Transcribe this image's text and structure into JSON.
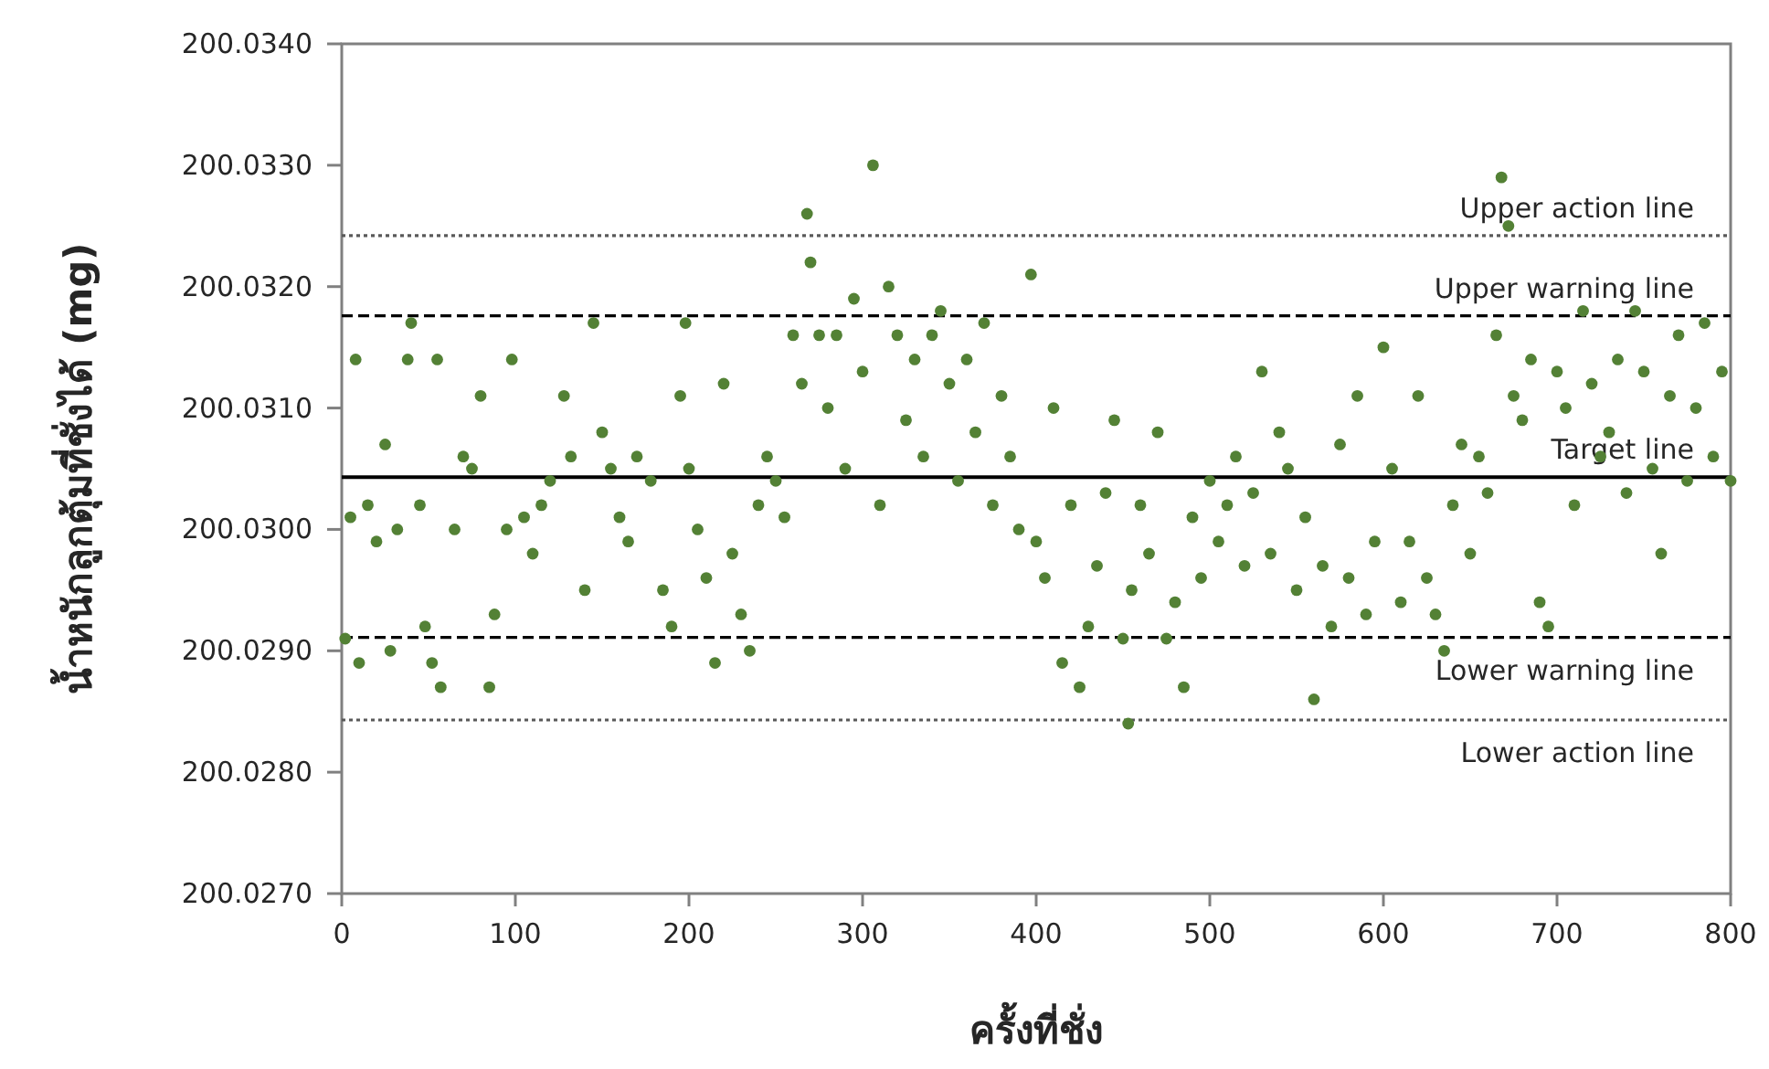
{
  "chart_data": {
    "type": "scatter",
    "xlabel": "ครั้งที่ชั่ง",
    "ylabel": "น้ำหนักลูกตุ้มที่ชั่งได้ (mg)",
    "xlim": [
      0,
      800
    ],
    "xticks": [
      0,
      100,
      200,
      300,
      400,
      500,
      600,
      700,
      800
    ],
    "ylim": [
      200.027,
      200.034
    ],
    "yticks": [
      {
        "value": 200.027,
        "label": "200.0270"
      },
      {
        "value": 200.028,
        "label": "200.0280"
      },
      {
        "value": 200.029,
        "label": "200.0290"
      },
      {
        "value": 200.03,
        "label": "200.0300"
      },
      {
        "value": 200.031,
        "label": "200.0310"
      },
      {
        "value": 200.032,
        "label": "200.0320"
      },
      {
        "value": 200.033,
        "label": "200.0330"
      },
      {
        "value": 200.034,
        "label": "200.0340"
      }
    ],
    "grid": false,
    "marker": "circle",
    "ref_lines": [
      {
        "axis": "y",
        "value": 200.03242,
        "label": "Upper action line",
        "line_style": "dotted",
        "color": "#595959"
      },
      {
        "axis": "y",
        "value": 200.03176,
        "label": "Upper warning line",
        "line_style": "dashed",
        "color": "#000000"
      },
      {
        "axis": "y",
        "value": 200.03043,
        "label": "Target line",
        "line_style": "solid",
        "color": "#000000"
      },
      {
        "axis": "y",
        "value": 200.02911,
        "label": "Lower warning line",
        "line_style": "dashed",
        "color": "#000000"
      },
      {
        "axis": "y",
        "value": 200.02843,
        "label": "Lower action line",
        "line_style": "dotted",
        "color": "#595959"
      }
    ],
    "series": [
      {
        "color": "#538135",
        "x": [
          2,
          5,
          8,
          10,
          15,
          20,
          25,
          28,
          32,
          38,
          40,
          45,
          48,
          52,
          55,
          57,
          65,
          70,
          75,
          80,
          85,
          88,
          95,
          98,
          105,
          110,
          115,
          120,
          128,
          132,
          140,
          145,
          150,
          155,
          160,
          165,
          170,
          178,
          185,
          190,
          195,
          198,
          200,
          205,
          210,
          215,
          220,
          225,
          230,
          235,
          240,
          245,
          250,
          255,
          260,
          265,
          268,
          270,
          275,
          280,
          285,
          290,
          295,
          300,
          306,
          310,
          315,
          320,
          325,
          330,
          335,
          340,
          345,
          350,
          355,
          360,
          365,
          370,
          375,
          380,
          385,
          390,
          397,
          400,
          405,
          410,
          415,
          420,
          425,
          430,
          435,
          440,
          445,
          450,
          453,
          455,
          460,
          465,
          470,
          475,
          480,
          485,
          490,
          495,
          500,
          505,
          510,
          515,
          520,
          525,
          530,
          535,
          540,
          545,
          550,
          555,
          560,
          565,
          570,
          575,
          580,
          585,
          590,
          595,
          600,
          605,
          610,
          615,
          620,
          625,
          630,
          635,
          640,
          645,
          650,
          655,
          660,
          665,
          668,
          672,
          675,
          680,
          685,
          690,
          695,
          700,
          705,
          710,
          715,
          720,
          725,
          730,
          735,
          740,
          745,
          750,
          755,
          760,
          765,
          770,
          775,
          780,
          785,
          790,
          795,
          800
        ],
        "values": [
          200.0291,
          200.0301,
          200.0314,
          200.0289,
          200.0302,
          200.0299,
          200.0307,
          200.029,
          200.03,
          200.0314,
          200.0317,
          200.0302,
          200.0292,
          200.0289,
          200.0314,
          200.0287,
          200.03,
          200.0306,
          200.0305,
          200.0311,
          200.0287,
          200.0293,
          200.03,
          200.0314,
          200.0301,
          200.0298,
          200.0302,
          200.0304,
          200.0311,
          200.0306,
          200.0295,
          200.0317,
          200.0308,
          200.0305,
          200.0301,
          200.0299,
          200.0306,
          200.0304,
          200.0295,
          200.0292,
          200.0311,
          200.0317,
          200.0305,
          200.03,
          200.0296,
          200.0289,
          200.0312,
          200.0298,
          200.0293,
          200.029,
          200.0302,
          200.0306,
          200.0304,
          200.0301,
          200.0316,
          200.0312,
          200.0326,
          200.0322,
          200.0316,
          200.031,
          200.0316,
          200.0305,
          200.0319,
          200.0313,
          200.033,
          200.0302,
          200.032,
          200.0316,
          200.0309,
          200.0314,
          200.0306,
          200.0316,
          200.0318,
          200.0312,
          200.0304,
          200.0314,
          200.0308,
          200.0317,
          200.0302,
          200.0311,
          200.0306,
          200.03,
          200.0321,
          200.0299,
          200.0296,
          200.031,
          200.0289,
          200.0302,
          200.0287,
          200.0292,
          200.0297,
          200.0303,
          200.0309,
          200.0291,
          200.0284,
          200.0295,
          200.0302,
          200.0298,
          200.0308,
          200.0291,
          200.0294,
          200.0287,
          200.0301,
          200.0296,
          200.0304,
          200.0299,
          200.0302,
          200.0306,
          200.0297,
          200.0303,
          200.0313,
          200.0298,
          200.0308,
          200.0305,
          200.0295,
          200.0301,
          200.0286,
          200.0297,
          200.0292,
          200.0307,
          200.0296,
          200.0311,
          200.0293,
          200.0299,
          200.0315,
          200.0305,
          200.0294,
          200.0299,
          200.0311,
          200.0296,
          200.0293,
          200.029,
          200.0302,
          200.0307,
          200.0298,
          200.0306,
          200.0303,
          200.0316,
          200.0329,
          200.0325,
          200.0311,
          200.0309,
          200.0314,
          200.0294,
          200.0292,
          200.0313,
          200.031,
          200.0302,
          200.0318,
          200.0312,
          200.0306,
          200.0308,
          200.0314,
          200.0303,
          200.0318,
          200.0313,
          200.0305,
          200.0298,
          200.0311,
          200.0316,
          200.0304,
          200.031,
          200.0317,
          200.0306,
          200.0313,
          200.0304
        ]
      }
    ]
  }
}
